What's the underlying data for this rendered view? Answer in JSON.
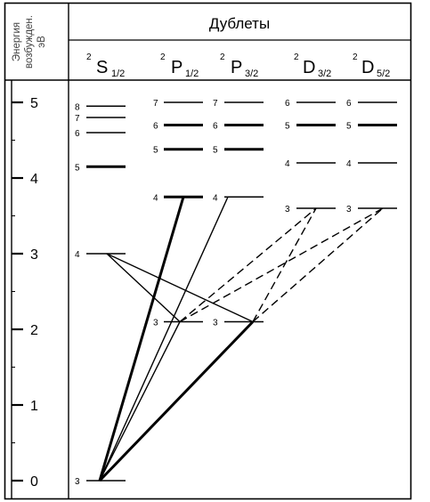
{
  "header": {
    "title": "Дублеты",
    "axis_title_lines": [
      "Энергия",
      "возбужден.",
      "эВ"
    ]
  },
  "axis": {
    "ticks": [
      "5",
      "4",
      "3",
      "2",
      "1",
      "0"
    ],
    "range": [
      0,
      5
    ]
  },
  "terms": [
    {
      "id": "S12",
      "sup": "2",
      "letter": "S",
      "sub": "1/2"
    },
    {
      "id": "P12",
      "sup": "2",
      "letter": "P",
      "sub": "1/2"
    },
    {
      "id": "P32",
      "sup": "2",
      "letter": "P",
      "sub": "3/2"
    },
    {
      "id": "D32",
      "sup": "2",
      "letter": "D",
      "sub": "3/2"
    },
    {
      "id": "D52",
      "sup": "2",
      "letter": "D",
      "sub": "5/2"
    }
  ],
  "levels": [
    {
      "term": "S12",
      "n": "3",
      "energy": 0.0,
      "bold": false
    },
    {
      "term": "S12",
      "n": "4",
      "energy": 3.0,
      "bold": false
    },
    {
      "term": "S12",
      "n": "5",
      "energy": 4.15,
      "bold": true
    },
    {
      "term": "S12",
      "n": "6",
      "energy": 4.6,
      "bold": false
    },
    {
      "term": "S12",
      "n": "7",
      "energy": 4.8,
      "bold": false
    },
    {
      "term": "S12",
      "n": "8",
      "energy": 4.95,
      "bold": false
    },
    {
      "term": "P12",
      "n": "3",
      "energy": 2.1,
      "bold": false
    },
    {
      "term": "P12",
      "n": "4",
      "energy": 3.75,
      "bold": true
    },
    {
      "term": "P12",
      "n": "5",
      "energy": 4.38,
      "bold": true
    },
    {
      "term": "P12",
      "n": "6",
      "energy": 4.7,
      "bold": true
    },
    {
      "term": "P12",
      "n": "7",
      "energy": 5.0,
      "bold": false
    },
    {
      "term": "P32",
      "n": "3",
      "energy": 2.1,
      "bold": false
    },
    {
      "term": "P32",
      "n": "4",
      "energy": 3.75,
      "bold": false
    },
    {
      "term": "P32",
      "n": "5",
      "energy": 4.38,
      "bold": true
    },
    {
      "term": "P32",
      "n": "6",
      "energy": 4.7,
      "bold": true
    },
    {
      "term": "P32",
      "n": "7",
      "energy": 5.0,
      "bold": false
    },
    {
      "term": "D32",
      "n": "3",
      "energy": 3.6,
      "bold": false
    },
    {
      "term": "D32",
      "n": "4",
      "energy": 4.2,
      "bold": false
    },
    {
      "term": "D32",
      "n": "5",
      "energy": 4.7,
      "bold": true
    },
    {
      "term": "D32",
      "n": "6",
      "energy": 5.0,
      "bold": false
    },
    {
      "term": "D52",
      "n": "3",
      "energy": 3.6,
      "bold": false
    },
    {
      "term": "D52",
      "n": "4",
      "energy": 4.2,
      "bold": false
    },
    {
      "term": "D52",
      "n": "5",
      "energy": 4.7,
      "bold": true
    },
    {
      "term": "D52",
      "n": "6",
      "energy": 5.0,
      "bold": false
    }
  ],
  "transitions": [
    {
      "from": "S12-3",
      "to": "P12-4",
      "style": "bold"
    },
    {
      "from": "S12-3",
      "to": "P32-4",
      "style": "solid"
    },
    {
      "from": "S12-3",
      "to": "P12-3",
      "style": "solid"
    },
    {
      "from": "S12-3",
      "to": "P32-3",
      "style": "bold"
    },
    {
      "from": "S12-4",
      "to": "P12-3",
      "style": "solid"
    },
    {
      "from": "S12-4",
      "to": "P32-3",
      "style": "solid"
    },
    {
      "from": "P12-3",
      "to": "D32-3",
      "style": "dashed"
    },
    {
      "from": "P12-3",
      "to": "D52-3",
      "style": "dashed"
    },
    {
      "from": "P32-3",
      "to": "D32-3",
      "style": "dashed"
    },
    {
      "from": "P32-3",
      "to": "D52-3",
      "style": "dashed"
    }
  ]
}
